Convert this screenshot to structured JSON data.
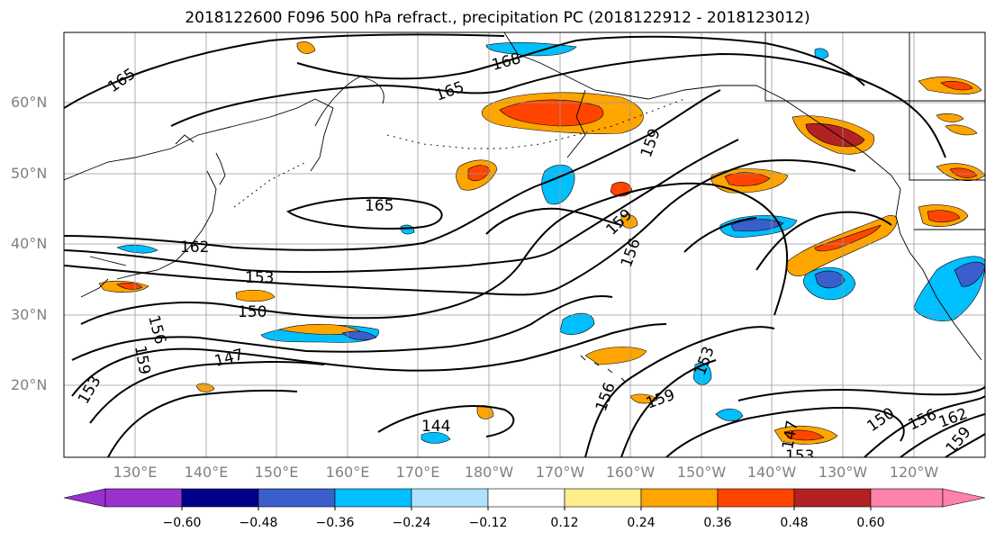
{
  "title": "2018122600 F096 500 hPa refract., precipitation PC (2018122912 - 2018123012)",
  "lat_labels": [
    "60°N",
    "50°N",
    "40°N",
    "30°N",
    "20°N"
  ],
  "lon_labels": [
    "130°E",
    "140°E",
    "150°E",
    "160°E",
    "170°E",
    "180°W",
    "170°W",
    "160°W",
    "150°W",
    "140°W",
    "130°W",
    "120°W"
  ],
  "contour_labels": [
    "165",
    "168",
    "165",
    "159",
    "165",
    "162",
    "153",
    "150",
    "159",
    "156",
    "156",
    "159",
    "153",
    "147",
    "144",
    "156",
    "159",
    "153",
    "147",
    "150",
    "156",
    "162",
    "159",
    "153"
  ],
  "colorbar": {
    "ticks": [
      "−0.60",
      "−0.48",
      "−0.36",
      "−0.24",
      "−0.12",
      "0.12",
      "0.24",
      "0.36",
      "0.48",
      "0.60"
    ],
    "colors": [
      "#9932CC",
      "#00008B",
      "#3A5FCD",
      "#00BFFF",
      "#B0E2FF",
      "#FFFFFF",
      "#FFEC8B",
      "#FFA500",
      "#FF4500",
      "#B22222",
      "#FF82AB"
    ]
  }
}
